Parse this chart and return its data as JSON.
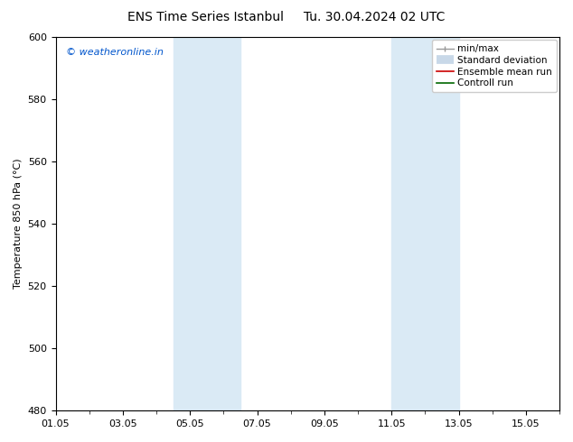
{
  "title_left": "ENS Time Series Istanbul",
  "title_right": "Tu. 30.04.2024 02 UTC",
  "ylabel": "Temperature 850 hPa (°C)",
  "ylim": [
    480,
    600
  ],
  "yticks": [
    480,
    500,
    520,
    540,
    560,
    580,
    600
  ],
  "xlim": [
    0,
    15
  ],
  "xtick_labels": [
    "01.05",
    "03.05",
    "05.05",
    "07.05",
    "09.05",
    "11.05",
    "13.05",
    "15.05"
  ],
  "xtick_positions": [
    0,
    2,
    4,
    6,
    8,
    10,
    12,
    14
  ],
  "shaded_bands": [
    {
      "x_start": 3.5,
      "x_end": 5.5
    },
    {
      "x_start": 10.0,
      "x_end": 12.0
    }
  ],
  "shade_color": "#daeaf5",
  "watermark_text": "© weatheronline.in",
  "watermark_color": "#0055cc",
  "legend_labels": [
    "min/max",
    "Standard deviation",
    "Ensemble mean run",
    "Controll run"
  ],
  "bg_color": "#ffffff",
  "font_size": 8,
  "title_fontsize": 10,
  "legend_fontsize": 7.5
}
